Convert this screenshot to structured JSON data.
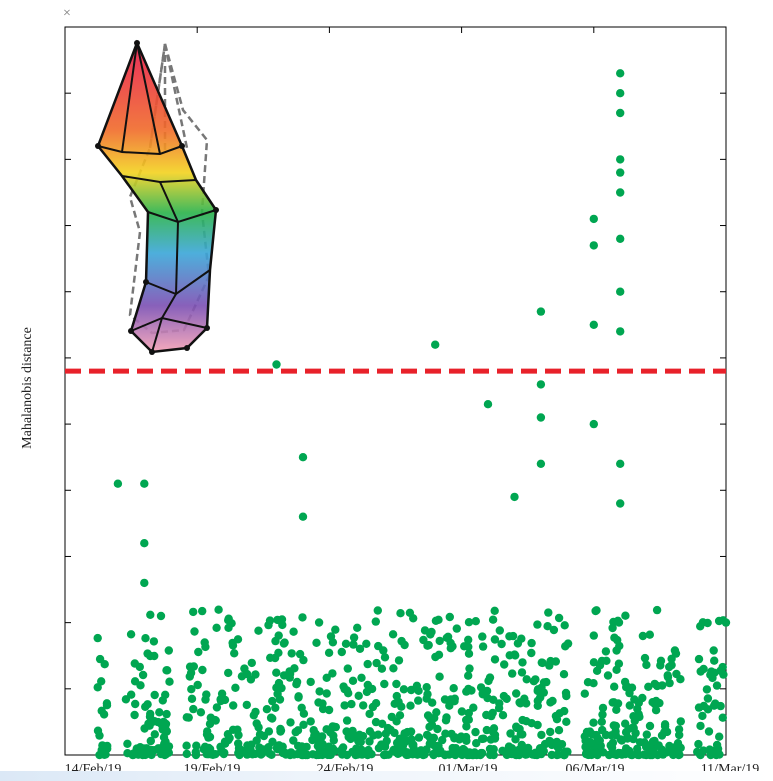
{
  "figure": {
    "ylabel": "Mahalanobis distance",
    "exponent_mark": "×",
    "xtick_labels": [
      "14/Feb/19",
      "19/Feb/19",
      "24/Feb/19",
      "01/Mar/19",
      "06/Mar/19",
      "11/Mar/19"
    ]
  },
  "colors": {
    "points": "#00a651",
    "threshold": "#e8212a",
    "axes": "#000000"
  },
  "chart_data": {
    "type": "scatter",
    "title": "",
    "xlabel": "",
    "ylabel": "Mahalanobis distance",
    "xlim": [
      "14/Feb/19",
      "11/Mar/19"
    ],
    "ylim": [
      0,
      11
    ],
    "y_tick_labels_shown": false,
    "grid": false,
    "threshold": {
      "y": 5.8,
      "style": "dashed",
      "color": "#e8212a"
    },
    "x_ticks": [
      {
        "label": "14/Feb/19",
        "day": 0
      },
      {
        "label": "19/Feb/19",
        "day": 5
      },
      {
        "label": "24/Feb/19",
        "day": 10
      },
      {
        "label": "01/Mar/19",
        "day": 15
      },
      {
        "label": "06/Mar/19",
        "day": 20
      },
      {
        "label": "11/Mar/19",
        "day": 25
      }
    ],
    "notable_points": [
      {
        "x": "16/Feb/19",
        "y": 4.1
      },
      {
        "x": "17/Feb/19",
        "y": 4.1
      },
      {
        "x": "17/Feb/19",
        "y": 3.2
      },
      {
        "x": "17/Feb/19",
        "y": 2.6
      },
      {
        "x": "22/Feb/19",
        "y": 5.9
      },
      {
        "x": "23/Feb/19",
        "y": 4.5
      },
      {
        "x": "23/Feb/19",
        "y": 3.6
      },
      {
        "x": "28/Feb/19",
        "y": 6.2
      },
      {
        "x": "02/Mar/19",
        "y": 5.3
      },
      {
        "x": "03/Mar/19",
        "y": 3.9
      },
      {
        "x": "04/Mar/19",
        "y": 6.7
      },
      {
        "x": "04/Mar/19",
        "y": 5.6
      },
      {
        "x": "04/Mar/19",
        "y": 5.1
      },
      {
        "x": "04/Mar/19",
        "y": 4.4
      },
      {
        "x": "06/Mar/19",
        "y": 8.1
      },
      {
        "x": "06/Mar/19",
        "y": 7.7
      },
      {
        "x": "06/Mar/19",
        "y": 6.5
      },
      {
        "x": "06/Mar/19",
        "y": 5.0
      },
      {
        "x": "07/Mar/19",
        "y": 10.3
      },
      {
        "x": "07/Mar/19",
        "y": 10.0
      },
      {
        "x": "07/Mar/19",
        "y": 9.7
      },
      {
        "x": "07/Mar/19",
        "y": 9.0
      },
      {
        "x": "07/Mar/19",
        "y": 8.8
      },
      {
        "x": "07/Mar/19",
        "y": 8.5
      },
      {
        "x": "07/Mar/19",
        "y": 7.8
      },
      {
        "x": "07/Mar/19",
        "y": 7.0
      },
      {
        "x": "07/Mar/19",
        "y": 6.4
      },
      {
        "x": "07/Mar/19",
        "y": 4.4
      },
      {
        "x": "07/Mar/19",
        "y": 3.8
      },
      {
        "x": "11/Mar/19",
        "y": 2.0
      }
    ],
    "bulk_points_summary": {
      "description": "dense cloud of points across the full date range",
      "y_range": [
        0,
        2.2
      ]
    }
  }
}
